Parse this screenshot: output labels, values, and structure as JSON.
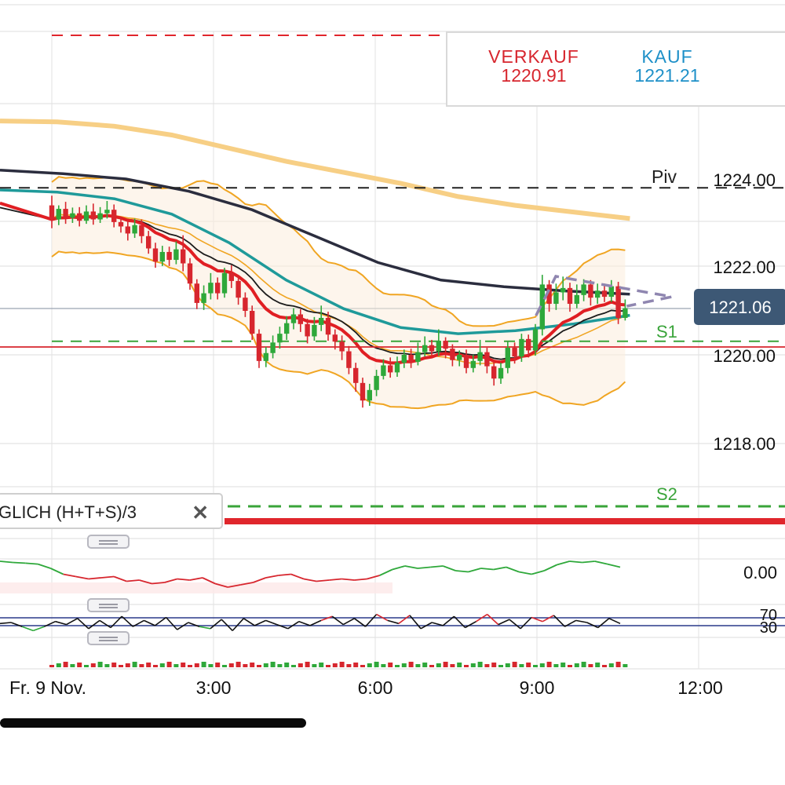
{
  "quote": {
    "sell_label": "VERKAUF",
    "sell_value": "1220.91",
    "buy_label": "KAUF",
    "buy_value": "1221.21",
    "sell_color": "#d7262e",
    "buy_color": "#1e90c8"
  },
  "indicator_panel": {
    "label": "GLICH   (H+T+S)/3",
    "close_icon": "close-icon",
    "close_glyph": "✕"
  },
  "chart_data": {
    "type": "candlestick",
    "y_ticks": [
      "1224.00",
      "1222.00",
      "1220.00",
      "1218.00"
    ],
    "ylim": [
      1216.1,
      1227.8
    ],
    "x_ticks": [
      "Fr. 9 Nov.",
      "3:00",
      "6:00",
      "9:00",
      "12:00"
    ],
    "current_price": "1221.06",
    "current_price_value": 1221.06,
    "pivot_levels": [
      {
        "label": "Piv",
        "value": 1223.8
      },
      {
        "label": "S1",
        "value": 1220.2
      },
      {
        "label": "S2",
        "value": 1216.4
      }
    ],
    "candles": [
      [
        1223.4,
        1223.08,
        1223.62,
        1222.88
      ],
      [
        1223.08,
        1223.32,
        1223.4,
        1222.95
      ],
      [
        1223.32,
        1223.12,
        1223.48,
        1222.98
      ],
      [
        1223.12,
        1223.22,
        1223.35,
        1223.0
      ],
      [
        1223.22,
        1223.05,
        1223.36,
        1222.92
      ],
      [
        1223.05,
        1223.26,
        1223.4,
        1222.98
      ],
      [
        1223.26,
        1223.08,
        1223.44,
        1222.96
      ],
      [
        1223.08,
        1223.22,
        1223.36,
        1223.0
      ],
      [
        1223.22,
        1223.3,
        1223.5,
        1223.1
      ],
      [
        1223.3,
        1223.02,
        1223.42,
        1222.9
      ],
      [
        1223.02,
        1222.92,
        1223.14,
        1222.78
      ],
      [
        1222.92,
        1222.76,
        1223.05,
        1222.6
      ],
      [
        1222.76,
        1222.95,
        1223.1,
        1222.66
      ],
      [
        1222.95,
        1222.7,
        1223.08,
        1222.54
      ],
      [
        1222.7,
        1222.42,
        1222.82,
        1222.3
      ],
      [
        1222.42,
        1222.12,
        1222.55,
        1221.98
      ],
      [
        1222.12,
        1222.34,
        1222.48,
        1222.02
      ],
      [
        1222.34,
        1222.16,
        1222.46,
        1222.02
      ],
      [
        1222.16,
        1222.4,
        1222.58,
        1222.06
      ],
      [
        1222.4,
        1222.08,
        1222.72,
        1221.9
      ],
      [
        1222.08,
        1221.62,
        1222.2,
        1221.48
      ],
      [
        1221.62,
        1221.18,
        1221.72,
        1221.04
      ],
      [
        1221.18,
        1221.4,
        1221.58,
        1221.02
      ],
      [
        1221.4,
        1221.64,
        1221.86,
        1221.26
      ],
      [
        1221.64,
        1221.4,
        1221.76,
        1221.26
      ],
      [
        1221.4,
        1221.86,
        1221.98,
        1221.3
      ],
      [
        1221.86,
        1221.68,
        1222.04,
        1221.52
      ],
      [
        1221.68,
        1221.3,
        1221.8,
        1221.14
      ],
      [
        1221.3,
        1221.0,
        1221.42,
        1220.86
      ],
      [
        1221.0,
        1220.48,
        1221.12,
        1220.34
      ],
      [
        1220.48,
        1219.86,
        1220.58,
        1219.7
      ],
      [
        1219.86,
        1220.04,
        1220.18,
        1219.72
      ],
      [
        1220.04,
        1220.28,
        1220.44,
        1219.92
      ],
      [
        1220.28,
        1220.48,
        1220.64,
        1220.14
      ],
      [
        1220.48,
        1220.72,
        1220.88,
        1220.34
      ],
      [
        1220.72,
        1220.92,
        1221.06,
        1220.58
      ],
      [
        1220.92,
        1220.7,
        1221.04,
        1220.52
      ],
      [
        1220.7,
        1220.42,
        1220.82,
        1220.26
      ],
      [
        1220.42,
        1220.68,
        1220.86,
        1220.32
      ],
      [
        1220.68,
        1220.84,
        1221.12,
        1220.54
      ],
      [
        1220.84,
        1220.46,
        1220.98,
        1220.32
      ],
      [
        1220.46,
        1220.3,
        1220.58,
        1220.12
      ],
      [
        1220.3,
        1220.08,
        1220.44,
        1219.88
      ],
      [
        1220.08,
        1219.7,
        1220.2,
        1219.56
      ],
      [
        1219.7,
        1219.36,
        1219.82,
        1219.16
      ],
      [
        1219.36,
        1218.96,
        1219.48,
        1218.8
      ],
      [
        1218.96,
        1219.2,
        1219.34,
        1218.84
      ],
      [
        1219.2,
        1219.52,
        1219.66,
        1219.06
      ],
      [
        1219.52,
        1219.76,
        1219.9,
        1219.44
      ],
      [
        1219.76,
        1219.6,
        1219.94,
        1219.48
      ],
      [
        1219.6,
        1219.82,
        1219.96,
        1219.5
      ],
      [
        1219.82,
        1220.0,
        1220.12,
        1219.7
      ],
      [
        1220.0,
        1219.84,
        1220.14,
        1219.7
      ],
      [
        1219.84,
        1220.06,
        1220.28,
        1219.76
      ],
      [
        1220.06,
        1220.22,
        1220.42,
        1219.96
      ],
      [
        1220.22,
        1220.08,
        1220.34,
        1219.96
      ],
      [
        1220.08,
        1220.32,
        1220.58,
        1219.98
      ],
      [
        1220.32,
        1220.14,
        1220.4,
        1219.92
      ],
      [
        1220.14,
        1219.88,
        1220.24,
        1219.74
      ],
      [
        1219.88,
        1220.0,
        1220.1,
        1219.74
      ],
      [
        1220.0,
        1219.7,
        1220.12,
        1219.58
      ],
      [
        1219.7,
        1219.86,
        1220.0,
        1219.6
      ],
      [
        1219.86,
        1220.06,
        1220.34,
        1219.76
      ],
      [
        1220.06,
        1219.74,
        1220.16,
        1219.58
      ],
      [
        1219.74,
        1219.46,
        1219.88,
        1219.3
      ],
      [
        1219.46,
        1219.7,
        1219.82,
        1219.34
      ],
      [
        1219.7,
        1220.16,
        1220.3,
        1219.58
      ],
      [
        1220.16,
        1219.96,
        1220.28,
        1219.8
      ],
      [
        1219.96,
        1220.36,
        1220.48,
        1219.84
      ],
      [
        1220.36,
        1220.1,
        1220.46,
        1219.94
      ],
      [
        1220.1,
        1220.58,
        1220.7,
        1219.98
      ],
      [
        1220.58,
        1221.6,
        1221.82,
        1220.44
      ],
      [
        1221.6,
        1221.16,
        1221.7,
        1220.98
      ],
      [
        1221.16,
        1221.42,
        1221.62,
        1221.02
      ],
      [
        1221.42,
        1221.52,
        1221.78,
        1221.24
      ],
      [
        1221.52,
        1221.16,
        1221.64,
        1220.98
      ],
      [
        1221.16,
        1221.36,
        1221.6,
        1221.06
      ],
      [
        1221.36,
        1221.6,
        1221.72,
        1221.22
      ],
      [
        1221.6,
        1221.3,
        1221.7,
        1221.12
      ],
      [
        1221.3,
        1221.46,
        1221.62,
        1221.16
      ],
      [
        1221.46,
        1221.32,
        1221.62,
        1221.2
      ],
      [
        1221.32,
        1221.56,
        1221.7,
        1221.2
      ],
      [
        1221.56,
        1220.84,
        1221.66,
        1220.7
      ],
      [
        1220.84,
        1221.06,
        1221.26,
        1220.78
      ]
    ],
    "oscillator_zero_label": "0.00",
    "rsi_levels": [
      "70",
      "30"
    ],
    "colors": {
      "up": "#2ea83a",
      "down": "#d7262e",
      "ma_red": "#e01f23",
      "ma_black": "#1c1c1c",
      "ma_teal": "#1f9a9a",
      "ma_navy": "#2b2d3e",
      "ma_orange": "#f7cf85",
      "bands": "#f0a522",
      "pivot": "#222222",
      "support": "#3aa43a",
      "label_bg": "#3d5875"
    }
  }
}
